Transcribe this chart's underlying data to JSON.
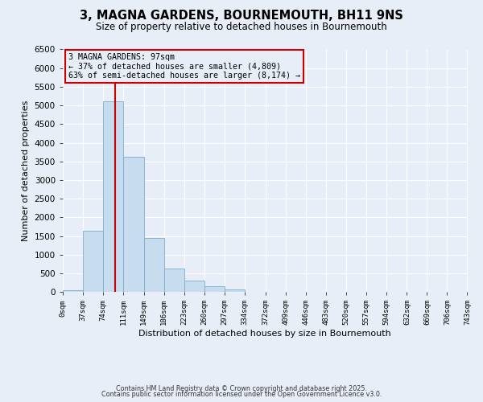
{
  "title": "3, MAGNA GARDENS, BOURNEMOUTH, BH11 9NS",
  "subtitle": "Size of property relative to detached houses in Bournemouth",
  "xlabel": "Distribution of detached houses by size in Bournemouth",
  "ylabel": "Number of detached properties",
  "bin_edges": [
    0,
    37,
    74,
    111,
    149,
    186,
    223,
    260,
    297,
    334,
    372,
    409,
    446,
    483,
    520,
    557,
    594,
    632,
    669,
    706,
    743
  ],
  "bin_labels": [
    "0sqm",
    "37sqm",
    "74sqm",
    "111sqm",
    "149sqm",
    "186sqm",
    "223sqm",
    "260sqm",
    "297sqm",
    "334sqm",
    "372sqm",
    "409sqm",
    "446sqm",
    "483sqm",
    "520sqm",
    "557sqm",
    "594sqm",
    "632sqm",
    "669sqm",
    "706sqm",
    "743sqm"
  ],
  "bar_heights": [
    50,
    1650,
    5100,
    3630,
    1440,
    620,
    310,
    150,
    60,
    0,
    0,
    0,
    0,
    0,
    0,
    0,
    0,
    0,
    0,
    0
  ],
  "bar_color": "#c8dcf0",
  "bar_edgecolor": "#7aadcc",
  "ylim": [
    0,
    6500
  ],
  "yticks": [
    0,
    500,
    1000,
    1500,
    2000,
    2500,
    3000,
    3500,
    4000,
    4500,
    5000,
    5500,
    6000,
    6500
  ],
  "vline_x": 97,
  "vline_color": "#cc0000",
  "annotation_title": "3 MAGNA GARDENS: 97sqm",
  "annotation_line1": "← 37% of detached houses are smaller (4,809)",
  "annotation_line2": "63% of semi-detached houses are larger (8,174) →",
  "annotation_box_color": "#cc0000",
  "footer1": "Contains HM Land Registry data © Crown copyright and database right 2025.",
  "footer2": "Contains public sector information licensed under the Open Government Licence v3.0.",
  "background_color": "#e8eef8",
  "grid_color": "#ffffff"
}
